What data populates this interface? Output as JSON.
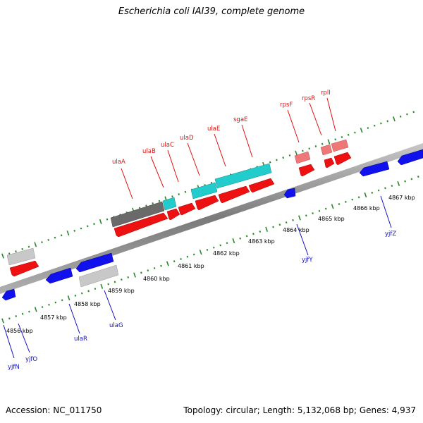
{
  "title": "Escherichia coli IAI39, complete genome",
  "footer": {
    "accession": "Accession: NC_011750",
    "summary": "Topology: circular; Length: 5,132,068 bp; Genes: 4,937"
  },
  "colors": {
    "forward_gene": "#ee1111",
    "reverse_gene": "#1111ee",
    "cds_highlight": "#22cccc",
    "pseudo_gray": "#888888",
    "pink_gene": "#ee7777",
    "tick_green": "#2a8a2a",
    "backbone": "#8a8a8a"
  },
  "scale_labels": [
    "4856 kbp",
    "4857 kbp",
    "4858 kbp",
    "4859 kbp",
    "4860 kbp",
    "4861 kbp",
    "4862 kbp",
    "4863 kbp",
    "4864 kbp",
    "4865 kbp",
    "4866 kbp",
    "4867 kbp"
  ],
  "top_genes": [
    "ulaA",
    "ulaB",
    "ulaC",
    "ulaD",
    "ulaE",
    "sgaE",
    "rpsF",
    "rpsR",
    "rplI"
  ],
  "bottom_genes": [
    "yjfN",
    "yjfO",
    "ulaR",
    "ulaG",
    "yjfY",
    "yjfZ"
  ]
}
